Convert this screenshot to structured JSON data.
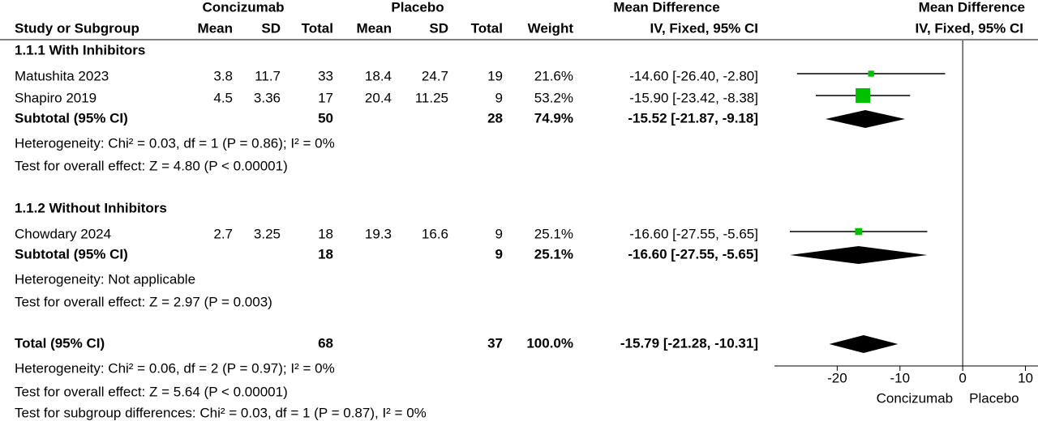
{
  "headers": {
    "group1": "Concizumab",
    "group2": "Placebo",
    "md_col": "Mean Difference",
    "md_method": "IV, Fixed, 95% CI",
    "plot_title": "Mean Difference",
    "plot_method": "IV, Fixed, 95% CI",
    "columns": [
      "Study or Subgroup",
      "Mean",
      "SD",
      "Total",
      "Mean",
      "SD",
      "Total",
      "Weight"
    ]
  },
  "subgroups": [
    {
      "title": "1.1.1 With Inhibitors",
      "studies": [
        {
          "name": "Matushita 2023",
          "cells": [
            3.8,
            11.7,
            33,
            18.4,
            24.7,
            19
          ],
          "weight": {
            "value": 21.6,
            "label": "21.6%"
          },
          "effect": {
            "value": -14.6,
            "low": -26.4,
            "high": -2.8,
            "label": "-14.60 [-26.40, -2.80]"
          }
        },
        {
          "name": "Shapiro 2019",
          "cells": [
            4.5,
            3.36,
            17,
            20.4,
            11.25,
            9
          ],
          "weight": {
            "value": 53.2,
            "label": "53.2%"
          },
          "effect": {
            "value": -15.9,
            "low": -23.42,
            "high": -8.38,
            "label": "-15.90 [-23.42, -8.38]"
          }
        }
      ],
      "subtotal": {
        "name": "Subtotal (95% CI)",
        "total1": 50,
        "total2": 28,
        "weight": {
          "value": 74.9,
          "label": "74.9%"
        },
        "effect": {
          "value": -15.52,
          "low": -21.87,
          "high": -9.18,
          "label": "-15.52 [-21.87, -9.18]"
        }
      },
      "heterogeneity": "Heterogeneity: Chi² = 0.03, df = 1 (P = 0.86); I² = 0%",
      "overall": "Test for overall effect: Z = 4.80 (P < 0.00001)"
    },
    {
      "title": "1.1.2 Without Inhibitors",
      "studies": [
        {
          "name": "Chowdary 2024",
          "cells": [
            2.7,
            3.25,
            18,
            19.3,
            16.6,
            9
          ],
          "weight": {
            "value": 25.1,
            "label": "25.1%"
          },
          "effect": {
            "value": -16.6,
            "low": -27.55,
            "high": -5.65,
            "label": "-16.60 [-27.55, -5.65]"
          }
        }
      ],
      "subtotal": {
        "name": "Subtotal (95% CI)",
        "total1": 18,
        "total2": 9,
        "weight": {
          "value": 25.1,
          "label": "25.1%"
        },
        "effect": {
          "value": -16.6,
          "low": -27.55,
          "high": -5.65,
          "label": "-16.60 [-27.55, -5.65]"
        }
      },
      "heterogeneity": "Heterogeneity: Not applicable",
      "overall": "Test for overall effect: Z = 2.97 (P = 0.003)"
    }
  ],
  "total": {
    "name": "Total (95% CI)",
    "total1": 68,
    "total2": 37,
    "weight": {
      "value": 100,
      "label": "100.0%"
    },
    "effect": {
      "value": -15.79,
      "low": -21.28,
      "high": -10.31,
      "label": "-15.79 [-21.28, -10.31]"
    }
  },
  "total_heterogeneity": "Heterogeneity: Chi² = 0.06, df = 2 (P = 0.97); I² = 0%",
  "total_overall": "Test for overall effect: Z = 5.64 (P < 0.00001)",
  "subgroup_differences": "Test for subgroup differences: Chi² = 0.03, df = 1 (P = 0.87), I² = 0%",
  "chart_data": {
    "type": "forest",
    "xlim": [
      -30,
      12
    ],
    "xticks": [
      -20,
      -10,
      0,
      10
    ],
    "left_label": "Concizumab",
    "right_label": "Placebo",
    "square_color": "#00c000",
    "diamond_color": "#000000"
  }
}
